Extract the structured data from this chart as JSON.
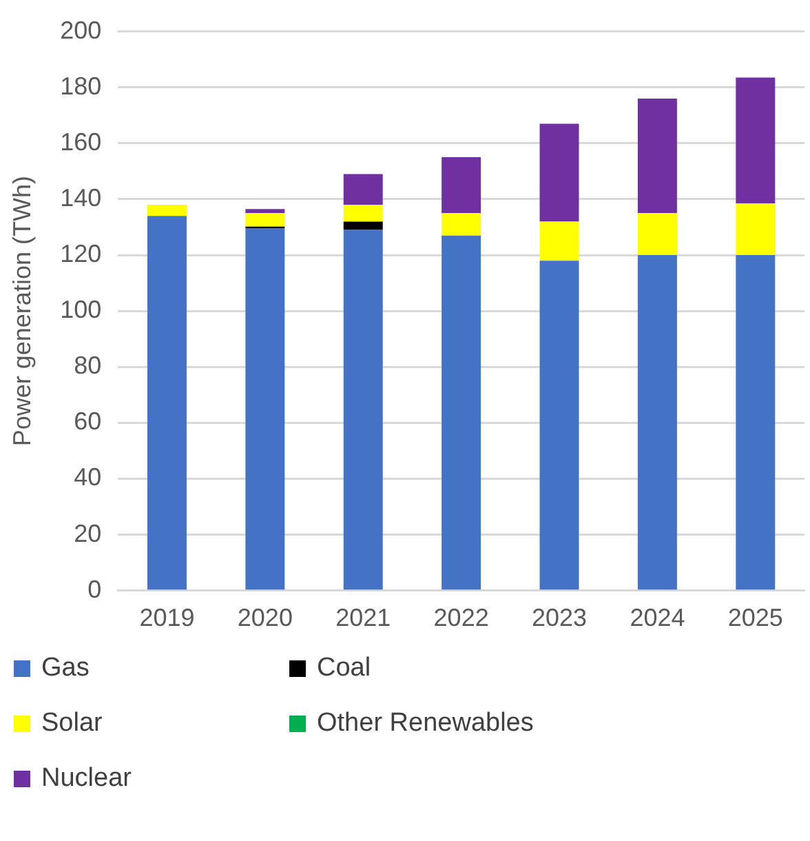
{
  "chart_data": {
    "type": "bar",
    "stacked": true,
    "ylabel": "Power generation (TWh)",
    "categories": [
      "2019",
      "2020",
      "2021",
      "2022",
      "2023",
      "2024",
      "2025"
    ],
    "series": [
      {
        "name": "Gas",
        "color": "#4472c4",
        "values": [
          134,
          129.5,
          129,
          127,
          118,
          120,
          120
        ]
      },
      {
        "name": "Coal",
        "color": "#000000",
        "values": [
          0,
          0.7,
          3,
          0,
          0,
          0,
          0
        ]
      },
      {
        "name": "Solar",
        "color": "#ffff00",
        "values": [
          4,
          4.8,
          6,
          8,
          14,
          15,
          18.5
        ]
      },
      {
        "name": "Other Renewables",
        "color": "#00b050",
        "values": [
          0,
          0,
          0,
          0,
          0,
          0,
          0
        ]
      },
      {
        "name": "Nuclear",
        "color": "#7030a0",
        "values": [
          0,
          1.5,
          11,
          20,
          35,
          41,
          45
        ]
      }
    ],
    "ylim": [
      0,
      200
    ],
    "yticks": [
      0,
      20,
      40,
      60,
      80,
      100,
      120,
      140,
      160,
      180,
      200
    ],
    "grid": "y",
    "legend": "bottom"
  }
}
